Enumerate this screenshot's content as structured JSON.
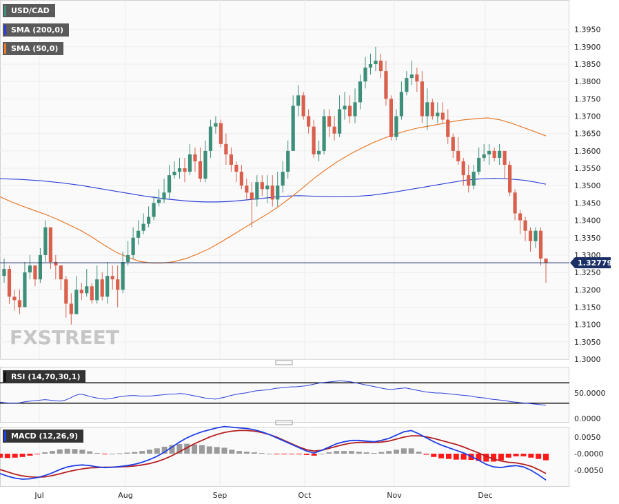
{
  "legend": {
    "symbol": "USD/CAD",
    "sma200": "SMA (200,0)",
    "sma50": "SMA (50,0)",
    "rsi": "RSI (14,70,30,1)",
    "macd": "MACD (12,26,9)"
  },
  "price_badge": "1.327790",
  "watermark": "FXSTREET",
  "colors": {
    "up": "#3d8f7a",
    "down": "#d9604c",
    "sma200": "#2b3fd6",
    "sma50": "#e87a2a",
    "rsi": "#2b3fd6",
    "macd": "#1e3fe6",
    "signal": "#b41e1e",
    "hist_pos": "#9a9a9a",
    "hist_neg": "#ff1a1a"
  },
  "chart_data": [
    {
      "type": "candlestick",
      "symbol": "USD/CAD",
      "x_labels": [
        "Jul",
        "Aug",
        "Sep",
        "Oct",
        "Nov",
        "Dec"
      ],
      "y_ticks": [
        "1.3950",
        "1.3900",
        "1.3850",
        "1.3800",
        "1.3750",
        "1.3700",
        "1.3650",
        "1.3600",
        "1.3550",
        "1.3500",
        "1.3450",
        "1.3400",
        "1.3350",
        "1.3300",
        "1.3250",
        "1.3200",
        "1.3150",
        "1.3100",
        "1.3050",
        "1.3000"
      ],
      "ylim": [
        1.3,
        1.399
      ],
      "last_price": 1.32779,
      "close": [
        1.326,
        1.318,
        1.317,
        1.315,
        1.325,
        1.327,
        1.323,
        1.33,
        1.338,
        1.328,
        1.327,
        1.323,
        1.316,
        1.313,
        1.32,
        1.319,
        1.321,
        1.317,
        1.323,
        1.318,
        1.324,
        1.323,
        1.32,
        1.328,
        1.33,
        1.335,
        1.337,
        1.339,
        1.341,
        1.345,
        1.346,
        1.348,
        1.353,
        1.354,
        1.355,
        1.354,
        1.359,
        1.357,
        1.352,
        1.36,
        1.367,
        1.368,
        1.362,
        1.359,
        1.356,
        1.354,
        1.35,
        1.348,
        1.346,
        1.351,
        1.349,
        1.35,
        1.346,
        1.35,
        1.354,
        1.36,
        1.373,
        1.376,
        1.37,
        1.367,
        1.359,
        1.36,
        1.37,
        1.367,
        1.365,
        1.372,
        1.373,
        1.37,
        1.374,
        1.38,
        1.384,
        1.385,
        1.386,
        1.383,
        1.375,
        1.364,
        1.37,
        1.377,
        1.381,
        1.382,
        1.38,
        1.37,
        1.374,
        1.37,
        1.371,
        1.369,
        1.364,
        1.36,
        1.357,
        1.353,
        1.35,
        1.354,
        1.358,
        1.359,
        1.36,
        1.358,
        1.36,
        1.356,
        1.348,
        1.342,
        1.34,
        1.337,
        1.334,
        1.337,
        1.329,
        1.3278
      ],
      "high": [
        1.329,
        1.327,
        1.32,
        1.32,
        1.328,
        1.33,
        1.327,
        1.332,
        1.34,
        1.332,
        1.33,
        1.327,
        1.324,
        1.319,
        1.324,
        1.322,
        1.326,
        1.322,
        1.327,
        1.325,
        1.328,
        1.327,
        1.327,
        1.331,
        1.334,
        1.338,
        1.34,
        1.342,
        1.344,
        1.347,
        1.349,
        1.352,
        1.356,
        1.357,
        1.358,
        1.358,
        1.362,
        1.361,
        1.361,
        1.363,
        1.369,
        1.37,
        1.369,
        1.365,
        1.361,
        1.357,
        1.356,
        1.352,
        1.351,
        1.353,
        1.353,
        1.353,
        1.353,
        1.354,
        1.357,
        1.363,
        1.376,
        1.379,
        1.377,
        1.372,
        1.369,
        1.363,
        1.372,
        1.372,
        1.37,
        1.376,
        1.377,
        1.376,
        1.378,
        1.382,
        1.387,
        1.388,
        1.39,
        1.388,
        1.386,
        1.376,
        1.372,
        1.38,
        1.383,
        1.386,
        1.384,
        1.383,
        1.378,
        1.375,
        1.374,
        1.374,
        1.372,
        1.365,
        1.364,
        1.358,
        1.356,
        1.356,
        1.361,
        1.362,
        1.362,
        1.361,
        1.362,
        1.36,
        1.357,
        1.349,
        1.343,
        1.341,
        1.338,
        1.338,
        1.338,
        1.329
      ],
      "low": [
        1.322,
        1.316,
        1.314,
        1.313,
        1.315,
        1.323,
        1.321,
        1.322,
        1.328,
        1.326,
        1.323,
        1.32,
        1.312,
        1.31,
        1.313,
        1.317,
        1.318,
        1.316,
        1.316,
        1.317,
        1.316,
        1.32,
        1.315,
        1.319,
        1.327,
        1.329,
        1.333,
        1.336,
        1.338,
        1.34,
        1.344,
        1.345,
        1.346,
        1.352,
        1.352,
        1.351,
        1.353,
        1.354,
        1.351,
        1.351,
        1.358,
        1.365,
        1.361,
        1.356,
        1.354,
        1.351,
        1.349,
        1.346,
        1.338,
        1.344,
        1.347,
        1.345,
        1.344,
        1.344,
        1.348,
        1.352,
        1.36,
        1.37,
        1.369,
        1.365,
        1.358,
        1.357,
        1.359,
        1.364,
        1.363,
        1.364,
        1.369,
        1.368,
        1.368,
        1.372,
        1.378,
        1.382,
        1.383,
        1.381,
        1.373,
        1.363,
        1.363,
        1.369,
        1.376,
        1.379,
        1.377,
        1.368,
        1.366,
        1.369,
        1.368,
        1.368,
        1.362,
        1.358,
        1.356,
        1.35,
        1.348,
        1.349,
        1.353,
        1.357,
        1.356,
        1.357,
        1.356,
        1.352,
        1.347,
        1.34,
        1.336,
        1.334,
        1.331,
        1.332,
        1.327,
        1.322
      ],
      "sma200": [
        1.352,
        1.3519,
        1.3518,
        1.3516,
        1.3514,
        1.3511,
        1.3508,
        1.3504,
        1.35,
        1.3495,
        1.349,
        1.3485,
        1.348,
        1.3475,
        1.347,
        1.3466,
        1.3462,
        1.3459,
        1.3456,
        1.3454,
        1.3453,
        1.3453,
        1.3454,
        1.3456,
        1.3459,
        1.3462,
        1.3465,
        1.3468,
        1.347,
        1.3471,
        1.347,
        1.3469,
        1.3468,
        1.3468,
        1.3468,
        1.347,
        1.3472,
        1.3476,
        1.348,
        1.3485,
        1.349,
        1.3495,
        1.35,
        1.3505,
        1.351,
        1.3515,
        1.3518,
        1.352,
        1.3521,
        1.352,
        1.3518,
        1.3515,
        1.351,
        1.3504
      ],
      "sma50": [
        1.3468,
        1.3453,
        1.344,
        1.3428,
        1.3416,
        1.3402,
        1.3386,
        1.337,
        1.335,
        1.3328,
        1.3308,
        1.3294,
        1.3282,
        1.3277,
        1.3277,
        1.3281,
        1.329,
        1.3303,
        1.3318,
        1.3337,
        1.3357,
        1.3378,
        1.3398,
        1.3418,
        1.344,
        1.3465,
        1.3492,
        1.352,
        1.3545,
        1.3568,
        1.3588,
        1.3606,
        1.3622,
        1.3636,
        1.3648,
        1.3658,
        1.3666,
        1.3672,
        1.3678,
        1.3685,
        1.369,
        1.3693,
        1.3695,
        1.369,
        1.368,
        1.3668,
        1.3656,
        1.3643
      ]
    },
    {
      "type": "line",
      "name": "RSI (14,70,30,1)",
      "y_ticks": [
        "50.0000",
        "0.0000"
      ],
      "levels": [
        70,
        30
      ],
      "ylim": [
        0,
        100
      ],
      "values": [
        32,
        31,
        30,
        30,
        31,
        33,
        34,
        35,
        36,
        37,
        36,
        35,
        34,
        36,
        40,
        45,
        48,
        46,
        43,
        41,
        39,
        38,
        39,
        41,
        43,
        44,
        45,
        45,
        44,
        44,
        44,
        45,
        46,
        47,
        48,
        48,
        49,
        48,
        46,
        44,
        42,
        40,
        39,
        38,
        40,
        42,
        45,
        47,
        49,
        50,
        52,
        54,
        55,
        56,
        57,
        59,
        60,
        61,
        62,
        62,
        63,
        64,
        66,
        68,
        70,
        71,
        72,
        73,
        74,
        73,
        72,
        70,
        68,
        66,
        64,
        62,
        60,
        58,
        57,
        58,
        59,
        60,
        58,
        56,
        54,
        52,
        51,
        50,
        50,
        49,
        48,
        47,
        46,
        45,
        44,
        42,
        41,
        40,
        38,
        37,
        36,
        35,
        33,
        32,
        31,
        30,
        29,
        28,
        27,
        26
      ]
    },
    {
      "type": "bar+line",
      "name": "MACD (12,26,9)",
      "y_ticks": [
        "0.0050",
        "-0.0000",
        "-0.0050"
      ],
      "ylim": [
        -0.0095,
        0.0075
      ],
      "macd": [
        -0.006,
        -0.0068,
        -0.0074,
        -0.0077,
        -0.0076,
        -0.0072,
        -0.0066,
        -0.0058,
        -0.0048,
        -0.004,
        -0.0036,
        -0.0034,
        -0.0036,
        -0.004,
        -0.0042,
        -0.0041,
        -0.0039,
        -0.0036,
        -0.0032,
        -0.0026,
        -0.0018,
        -0.0008,
        0.0005,
        0.002,
        0.0035,
        0.0048,
        0.0058,
        0.0066,
        0.0072,
        0.0078,
        0.0082,
        0.008,
        0.0078,
        0.0076,
        0.0072,
        0.0066,
        0.0058,
        0.0048,
        0.0038,
        0.0028,
        0.0018,
        0.0008,
        0.0002,
        0.001,
        0.002,
        0.003,
        0.0036,
        0.004,
        0.004,
        0.0038,
        0.0036,
        0.004,
        0.0046,
        0.0056,
        0.0066,
        0.007,
        0.006,
        0.0048,
        0.0036,
        0.0026,
        0.0018,
        0.001,
        0.0002,
        -0.0008,
        -0.002,
        -0.0032,
        -0.004,
        -0.0042,
        -0.0038,
        -0.0036,
        -0.004,
        -0.005,
        -0.0064,
        -0.008
      ],
      "signal": [
        -0.0048,
        -0.0055,
        -0.0062,
        -0.0067,
        -0.007,
        -0.0071,
        -0.007,
        -0.0066,
        -0.0061,
        -0.0055,
        -0.005,
        -0.0046,
        -0.0043,
        -0.0042,
        -0.0041,
        -0.0041,
        -0.004,
        -0.0039,
        -0.0037,
        -0.0034,
        -0.003,
        -0.0024,
        -0.0016,
        -0.0006,
        0.0006,
        0.0018,
        0.003,
        0.004,
        0.005,
        0.0058,
        0.0064,
        0.0068,
        0.007,
        0.007,
        0.0068,
        0.0064,
        0.0058,
        0.005,
        0.004,
        0.003,
        0.002,
        0.0012,
        0.0008,
        0.001,
        0.0016,
        0.0022,
        0.0028,
        0.0032,
        0.0034,
        0.0034,
        0.0034,
        0.0035,
        0.0038,
        0.0044,
        0.005,
        0.0054,
        0.0054,
        0.0051,
        0.0046,
        0.004,
        0.0034,
        0.0028,
        0.002,
        0.0011,
        0.0002,
        -0.0008,
        -0.0016,
        -0.0022,
        -0.0026,
        -0.0028,
        -0.0032,
        -0.0038,
        -0.0048,
        -0.006
      ],
      "histogram": [
        -0.0012,
        -0.0013,
        -0.0012,
        -0.001,
        -0.0006,
        -0.0001,
        0.0004,
        0.0008,
        0.0013,
        0.0015,
        0.0014,
        0.0012,
        0.0007,
        0.0002,
        -0.0001,
        0.0,
        0.0001,
        0.0003,
        0.0005,
        0.0008,
        0.0012,
        0.0016,
        0.0021,
        0.0026,
        0.0029,
        0.003,
        0.0028,
        0.0026,
        0.0022,
        0.002,
        0.0018,
        0.0012,
        0.0008,
        0.0006,
        0.0004,
        0.0002,
        0.0,
        -0.0002,
        -0.0002,
        -0.0002,
        -0.0002,
        -0.0004,
        -0.0006,
        0.0,
        0.0004,
        0.0008,
        0.0008,
        0.0008,
        0.0006,
        0.0004,
        0.0002,
        0.0005,
        0.0008,
        0.0012,
        0.0016,
        0.0016,
        0.0006,
        -0.0003,
        -0.001,
        -0.0014,
        -0.0016,
        -0.0018,
        -0.0018,
        -0.0019,
        -0.0022,
        -0.0024,
        -0.0024,
        -0.002,
        -0.0012,
        -0.0008,
        -0.0008,
        -0.0012,
        -0.0016,
        -0.002
      ]
    }
  ]
}
